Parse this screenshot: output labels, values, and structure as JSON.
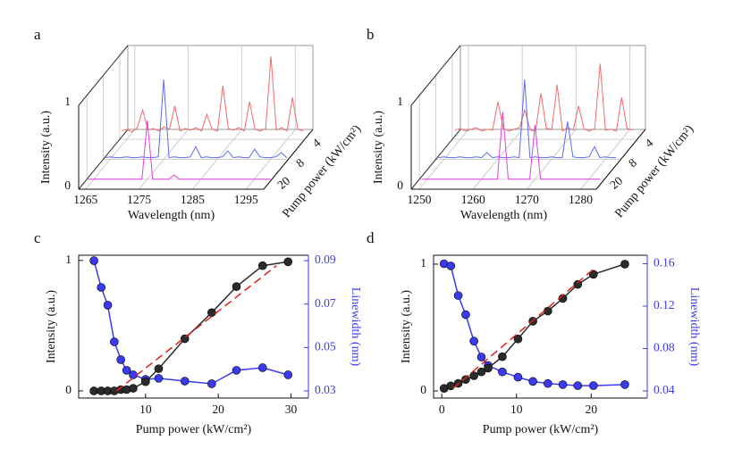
{
  "chart_data": [
    {
      "type": "waterfall3d",
      "panel_label": "a",
      "x_label": "Wavelength (nm)",
      "y_label": "Intensity (a.u.)",
      "depth_label": "Pump power (kW/cm²)",
      "xlim": [
        1263.7,
        1298.3
      ],
      "xticks": [
        1265,
        1275,
        1285,
        1295
      ],
      "ylim": [
        0,
        1
      ],
      "yticks": [
        0,
        1
      ],
      "depth_categories": [
        "20",
        "8",
        "4"
      ],
      "x": [
        1264,
        1265,
        1266,
        1267,
        1268,
        1269,
        1270,
        1271,
        1272,
        1273,
        1274,
        1275,
        1276,
        1277,
        1278,
        1279,
        1280,
        1281,
        1282,
        1283,
        1284,
        1285,
        1286,
        1287,
        1288,
        1289,
        1290,
        1291,
        1292,
        1293,
        1294,
        1295,
        1296,
        1297,
        1298
      ],
      "series": [
        {
          "color": "#e040e0",
          "values": [
            0,
            0,
            0,
            0,
            0,
            0,
            0,
            0,
            0,
            0,
            0,
            0.7,
            0,
            0,
            0,
            0,
            0.05,
            0,
            0,
            0,
            0,
            0,
            0,
            0,
            0,
            0,
            0,
            0,
            0,
            0,
            0,
            0,
            0,
            0,
            0
          ]
        },
        {
          "color": "#5a6cf0",
          "values": [
            0.02,
            0.03,
            0.02,
            0.02,
            0.03,
            0.02,
            0.02,
            0.03,
            0.02,
            0.02,
            0.03,
            0.95,
            0.02,
            0.03,
            0.02,
            0.02,
            0.03,
            0.15,
            0.02,
            0.03,
            0.02,
            0.02,
            0.03,
            0.1,
            0.02,
            0.03,
            0.02,
            0.02,
            0.12,
            0.03,
            0.02,
            0.02,
            0.03,
            0.08,
            0.02
          ]
        },
        {
          "color": "#f26b6b",
          "values": [
            0.1,
            0.12,
            0.09,
            0.14,
            0.35,
            0.11,
            0.13,
            0.1,
            0.15,
            0.12,
            0.4,
            0.1,
            0.13,
            0.11,
            0.14,
            0.1,
            0.3,
            0.12,
            0.1,
            0.64,
            0.13,
            0.11,
            0.14,
            0.1,
            0.45,
            0.12,
            0.1,
            0.13,
            0.99,
            0.11,
            0.14,
            0.1,
            0.5,
            0.12,
            0.1
          ]
        }
      ]
    },
    {
      "type": "waterfall3d",
      "panel_label": "b",
      "x_label": "Wavelength (nm)",
      "y_label": "Intensity (a.u.)",
      "depth_label": "Pump power (kW/cm²)",
      "xlim": [
        1248.5,
        1282.9
      ],
      "xticks": [
        1250,
        1260,
        1270,
        1280
      ],
      "ylim": [
        0,
        1
      ],
      "yticks": [
        0,
        1
      ],
      "depth_categories": [
        "20",
        "8",
        "4"
      ],
      "x": [
        1249,
        1250,
        1251,
        1252,
        1253,
        1254,
        1255,
        1256,
        1257,
        1258,
        1259,
        1260,
        1261,
        1262,
        1263,
        1264,
        1265,
        1266,
        1267,
        1268,
        1269,
        1270,
        1271,
        1272,
        1273,
        1274,
        1275,
        1276,
        1277,
        1278,
        1279,
        1280,
        1281,
        1282
      ],
      "series": [
        {
          "color": "#e040e0",
          "values": [
            0,
            0,
            0,
            0,
            0,
            0,
            0,
            0,
            0,
            0,
            0,
            0,
            0,
            0,
            0,
            0.8,
            0,
            0,
            0,
            0,
            0,
            0.65,
            0,
            0,
            0,
            0,
            0,
            0,
            0,
            0,
            0,
            0,
            0,
            0
          ]
        },
        {
          "color": "#5a6cf0",
          "values": [
            0.02,
            0.03,
            0.02,
            0.02,
            0.03,
            0.02,
            0.02,
            0.03,
            0.02,
            0.08,
            0.02,
            0.03,
            0.02,
            0.02,
            0.03,
            0.02,
            0.95,
            0.02,
            0.03,
            0.02,
            0.02,
            0.03,
            0.02,
            0.02,
            0.45,
            0.03,
            0.02,
            0.02,
            0.03,
            0.15,
            0.02,
            0.03,
            0.02,
            0.02
          ]
        },
        {
          "color": "#f26b6b",
          "values": [
            0.11,
            0.13,
            0.1,
            0.12,
            0.14,
            0.1,
            0.12,
            0.11,
            0.45,
            0.13,
            0.1,
            0.12,
            0.14,
            0.35,
            0.11,
            0.1,
            0.55,
            0.13,
            0.12,
            0.65,
            0.1,
            0.14,
            0.11,
            0.4,
            0.12,
            0.1,
            0.13,
            0.9,
            0.11,
            0.12,
            0.1,
            0.5,
            0.13,
            0.11
          ]
        }
      ]
    },
    {
      "type": "line",
      "panel_label": "c",
      "x_label": "Pump power (kW/cm²)",
      "y_label": "Intensity (a.u.)",
      "y2_label": "Linewidth (nm)",
      "y2_color": "#3a3af0",
      "xlim": [
        0.8,
        32.4
      ],
      "xticks": [
        10,
        20,
        30
      ],
      "ylim": [
        -0.055,
        1.04
      ],
      "yticks": [
        0,
        1
      ],
      "y2lim": [
        0.0267,
        0.0925
      ],
      "y2ticks": [
        0.03,
        0.05,
        0.07,
        0.09
      ],
      "series": [
        {
          "color": "#3a3af0",
          "axis": "y2",
          "markers": true,
          "x": [
            2.9,
            3.9,
            4.8,
            5.7,
            6.6,
            7.4,
            8.3,
            10,
            11.8,
            15.4,
            19.1,
            22.5,
            26.1,
            29.6
          ],
          "values": [
            0.09,
            0.0777,
            0.0695,
            0.0526,
            0.0444,
            0.0395,
            0.0374,
            0.0353,
            0.0358,
            0.0345,
            0.0333,
            0.0395,
            0.0407,
            0.0374
          ]
        },
        {
          "color": "#2b2b2b",
          "markers": true,
          "x": [
            2.9,
            3.9,
            4.8,
            5.7,
            6.6,
            7.4,
            8.3,
            10,
            11.8,
            15.4,
            19.1,
            22.5,
            26.1,
            29.6
          ],
          "values": [
            0,
            0,
            0,
            0,
            0.01,
            0.01,
            0.02,
            0.07,
            0.17,
            0.4,
            0.6,
            0.8,
            0.96,
            0.99
          ]
        },
        {
          "color": "#e0201b",
          "dashed": true,
          "x": [
            6,
            28
          ],
          "values": [
            0,
            0.96
          ]
        }
      ]
    },
    {
      "type": "line",
      "panel_label": "d",
      "x_label": "Pump power (kW/cm²)",
      "y_label": "Intensity (a.u.)",
      "y2_label": "Linewidth (nm)",
      "y2_color": "#3a3af0",
      "xlim": [
        -1.1,
        27.5
      ],
      "xticks": [
        0,
        10,
        20
      ],
      "ylim": [
        -0.056,
        1.07
      ],
      "yticks": [
        0,
        1
      ],
      "y2lim": [
        0.0333,
        0.168
      ],
      "y2ticks": [
        0.04,
        0.08,
        0.12,
        0.16
      ],
      "series": [
        {
          "color": "#3a3af0",
          "axis": "y2",
          "markers": true,
          "x": [
            0.3,
            1.2,
            2.2,
            3.2,
            4.3,
            5.3,
            6.2,
            8.1,
            10.2,
            12.2,
            14.2,
            16.2,
            18.2,
            20.3,
            24.5
          ],
          "values": [
            0.16,
            0.158,
            0.13,
            0.112,
            0.087,
            0.072,
            0.064,
            0.058,
            0.053,
            0.049,
            0.047,
            0.046,
            0.045,
            0.045,
            0.046
          ]
        },
        {
          "color": "#2b2b2b",
          "markers": true,
          "x": [
            0.3,
            1.2,
            2.2,
            3.2,
            4.3,
            5.3,
            6.2,
            8.1,
            10.2,
            12.2,
            14.2,
            16.2,
            18.2,
            20.3,
            24.5
          ],
          "values": [
            0.02,
            0.04,
            0.06,
            0.09,
            0.12,
            0.15,
            0.18,
            0.27,
            0.41,
            0.55,
            0.63,
            0.73,
            0.84,
            0.92,
            1
          ]
        },
        {
          "color": "#e0201b",
          "dashed": true,
          "x": [
            1.5,
            20.5
          ],
          "values": [
            0.02,
            0.97
          ]
        }
      ]
    }
  ]
}
